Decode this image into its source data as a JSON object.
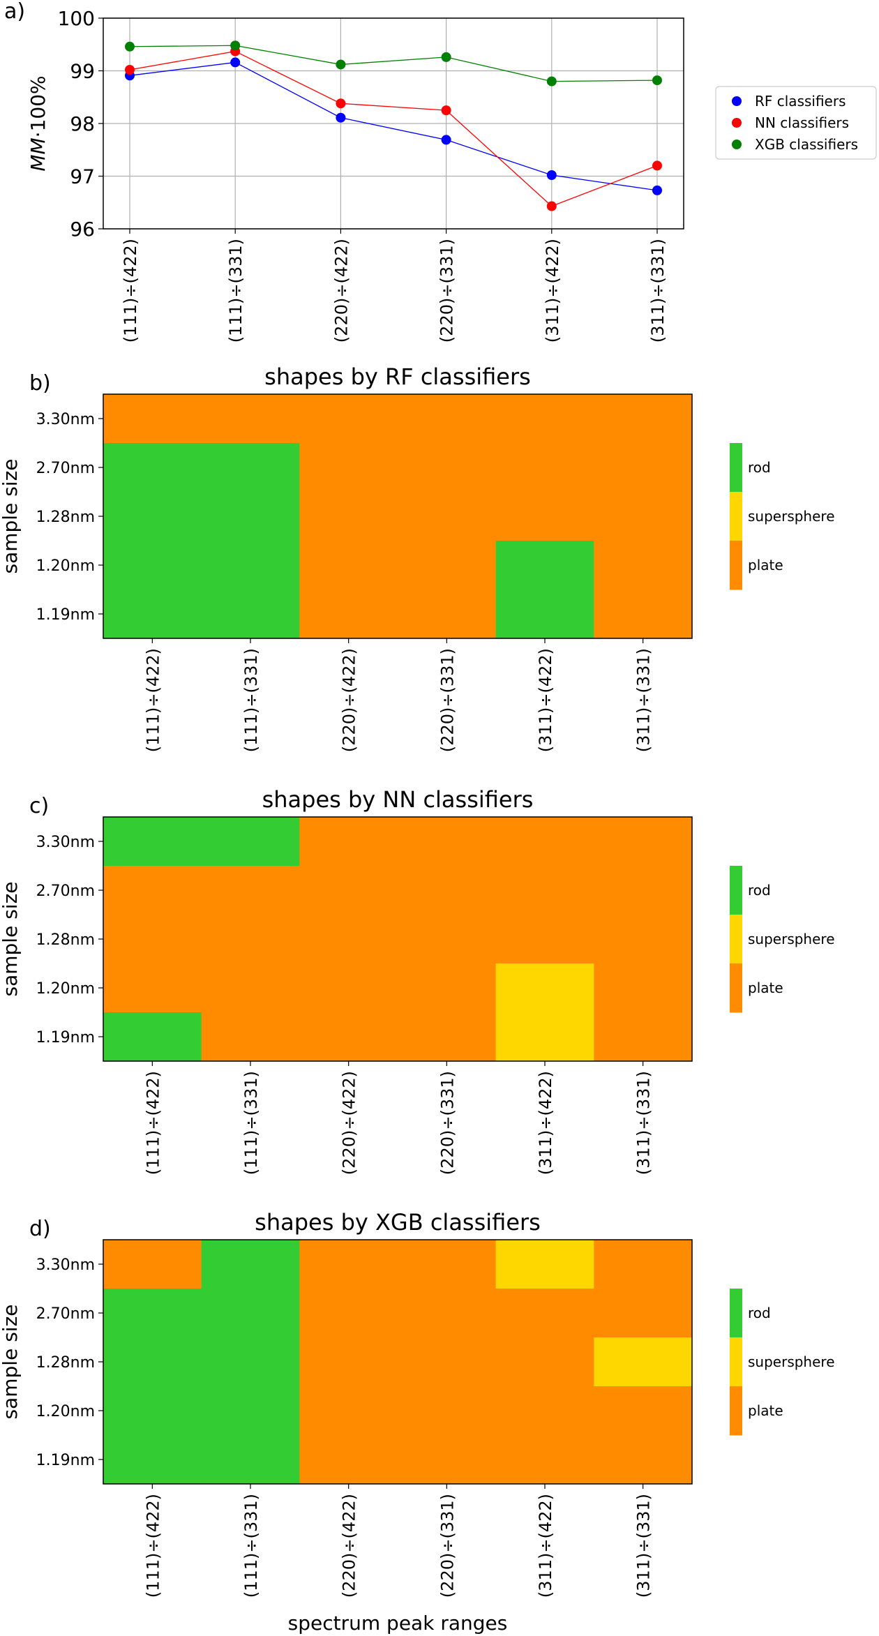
{
  "colors": {
    "rod": "#33cc33",
    "supersphere": "#ffd700",
    "plate": "#ff8c00",
    "RF": "#0000ff",
    "NN": "#ff0000",
    "XGB": "#008000",
    "grid": "#b0b0b0"
  },
  "x_label": "spectrum peak ranges",
  "chart_data": [
    {
      "panel": "a)",
      "type": "line",
      "title": "",
      "ylabel": "MM·100%",
      "ylabel_main": "MM",
      "ylabel_rest": "·100%",
      "categories": [
        "(111)÷(422)",
        "(111)÷(331)",
        "(220)÷(422)",
        "(220)÷(331)",
        "(311)÷(422)",
        "(311)÷(331)"
      ],
      "ylim": [
        96,
        100
      ],
      "yticks": [
        "96",
        "97",
        "98",
        "99",
        "100"
      ],
      "grid": true,
      "legend": "right",
      "series": [
        {
          "name": "RF  classifiers",
          "color_key": "RF",
          "values": [
            98.91,
            99.16,
            98.11,
            97.69,
            97.02,
            96.73
          ]
        },
        {
          "name": "NN classifiers",
          "color_key": "NN",
          "values": [
            99.02,
            99.37,
            98.38,
            98.25,
            96.43,
            97.2
          ]
        },
        {
          "name": "XGB classifiers",
          "color_key": "XGB",
          "values": [
            99.46,
            99.48,
            99.12,
            99.26,
            98.8,
            98.82
          ]
        }
      ]
    },
    {
      "panel": "b)",
      "type": "heatmap",
      "title": "shapes  by RF classifiers",
      "ylabel": "sample size",
      "xcategories": [
        "(111)÷(422)",
        "(111)÷(331)",
        "(220)÷(422)",
        "(220)÷(331)",
        "(311)÷(422)",
        "(311)÷(331)"
      ],
      "yrows": [
        "3.30nm",
        "2.70nm",
        "1.28nm",
        "1.20nm",
        "1.19nm"
      ],
      "legend_classes": [
        "rod",
        "supersphere",
        "plate"
      ],
      "grid_values": [
        [
          "plate",
          "plate",
          "plate",
          "plate",
          "plate",
          "plate"
        ],
        [
          "rod",
          "rod",
          "plate",
          "plate",
          "plate",
          "plate"
        ],
        [
          "rod",
          "rod",
          "plate",
          "plate",
          "plate",
          "plate"
        ],
        [
          "rod",
          "rod",
          "plate",
          "plate",
          "rod",
          "plate"
        ],
        [
          "rod",
          "rod",
          "plate",
          "plate",
          "rod",
          "plate"
        ]
      ]
    },
    {
      "panel": "c)",
      "type": "heatmap",
      "title": "shapes by NN classifiers",
      "ylabel": "sample size",
      "xcategories": [
        "(111)÷(422)",
        "(111)÷(331)",
        "(220)÷(422)",
        "(220)÷(331)",
        "(311)÷(422)",
        "(311)÷(331)"
      ],
      "yrows": [
        "3.30nm",
        "2.70nm",
        "1.28nm",
        "1.20nm",
        "1.19nm"
      ],
      "legend_classes": [
        "rod",
        "supersphere",
        "plate"
      ],
      "grid_values": [
        [
          "rod",
          "rod",
          "plate",
          "plate",
          "plate",
          "plate"
        ],
        [
          "plate",
          "plate",
          "plate",
          "plate",
          "plate",
          "plate"
        ],
        [
          "plate",
          "plate",
          "plate",
          "plate",
          "plate",
          "plate"
        ],
        [
          "plate",
          "plate",
          "plate",
          "plate",
          "supersphere",
          "plate"
        ],
        [
          "rod",
          "plate",
          "plate",
          "plate",
          "supersphere",
          "plate"
        ]
      ]
    },
    {
      "panel": "d)",
      "type": "heatmap",
      "title": "shapes by XGB classifiers",
      "ylabel": "sample size",
      "xcategories": [
        "(111)÷(422)",
        "(111)÷(331)",
        "(220)÷(422)",
        "(220)÷(331)",
        "(311)÷(422)",
        "(311)÷(331)"
      ],
      "yrows": [
        "3.30nm",
        "2.70nm",
        "1.28nm",
        "1.20nm",
        "1.19nm"
      ],
      "legend_classes": [
        "rod",
        "supersphere",
        "plate"
      ],
      "grid_values": [
        [
          "plate",
          "rod",
          "plate",
          "plate",
          "supersphere",
          "plate"
        ],
        [
          "rod",
          "rod",
          "plate",
          "plate",
          "plate",
          "plate"
        ],
        [
          "rod",
          "rod",
          "plate",
          "plate",
          "plate",
          "supersphere"
        ],
        [
          "rod",
          "rod",
          "plate",
          "plate",
          "plate",
          "plate"
        ],
        [
          "rod",
          "rod",
          "plate",
          "plate",
          "plate",
          "plate"
        ]
      ]
    }
  ]
}
